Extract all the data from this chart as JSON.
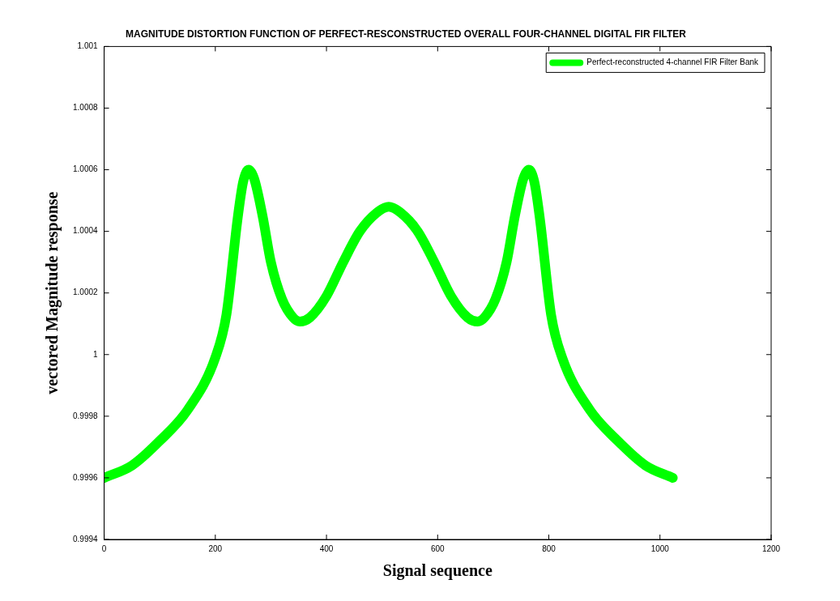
{
  "chart_data": {
    "type": "line",
    "title": "MAGNITUDE DISTORTION FUNCTION OF PERFECT-RESCONSTRUCTED OVERALL FOUR-CHANNEL DIGITAL FIR FILTER",
    "xlabel": "Signal sequence",
    "ylabel": "vectored Magnitude response",
    "x": [
      0,
      50,
      100,
      150,
      200,
      220,
      240,
      250,
      260,
      270,
      285,
      300,
      320,
      340,
      352,
      370,
      400,
      430,
      460,
      490,
      512,
      534,
      564,
      594,
      624,
      654,
      672,
      684,
      704,
      724,
      739,
      754,
      764,
      774,
      784,
      804,
      824,
      874,
      924,
      974,
      1023
    ],
    "series": [
      {
        "name": "Perfect-reconstructed 4-channel FIR Filter Bank",
        "color": "#00ff00",
        "values": [
          0.9996,
          0.99964,
          0.99972,
          0.99982,
          0.99999,
          1.00013,
          1.00044,
          1.00056,
          1.0006,
          1.00057,
          1.00045,
          1.0003,
          1.00018,
          1.00012,
          1.000107,
          1.00012,
          1.00019,
          1.0003,
          1.0004,
          1.00046,
          1.00048,
          1.00046,
          1.0004,
          1.0003,
          1.00019,
          1.00012,
          1.000107,
          1.00012,
          1.00018,
          1.0003,
          1.00045,
          1.00057,
          1.0006,
          1.00056,
          1.00044,
          1.00013,
          0.99999,
          0.99982,
          0.99972,
          0.99964,
          0.9996
        ]
      }
    ],
    "xlim": [
      0,
      1200
    ],
    "xticks": [
      0,
      200,
      400,
      600,
      800,
      1000,
      1200
    ],
    "ylim": [
      0.9994,
      1.001
    ],
    "yticks": [
      0.9994,
      0.9996,
      0.9998,
      1,
      1.0002,
      1.0004,
      1.0006,
      1.0008,
      1.001
    ],
    "grid": false,
    "legend": "top right",
    "line_style": "solid"
  }
}
